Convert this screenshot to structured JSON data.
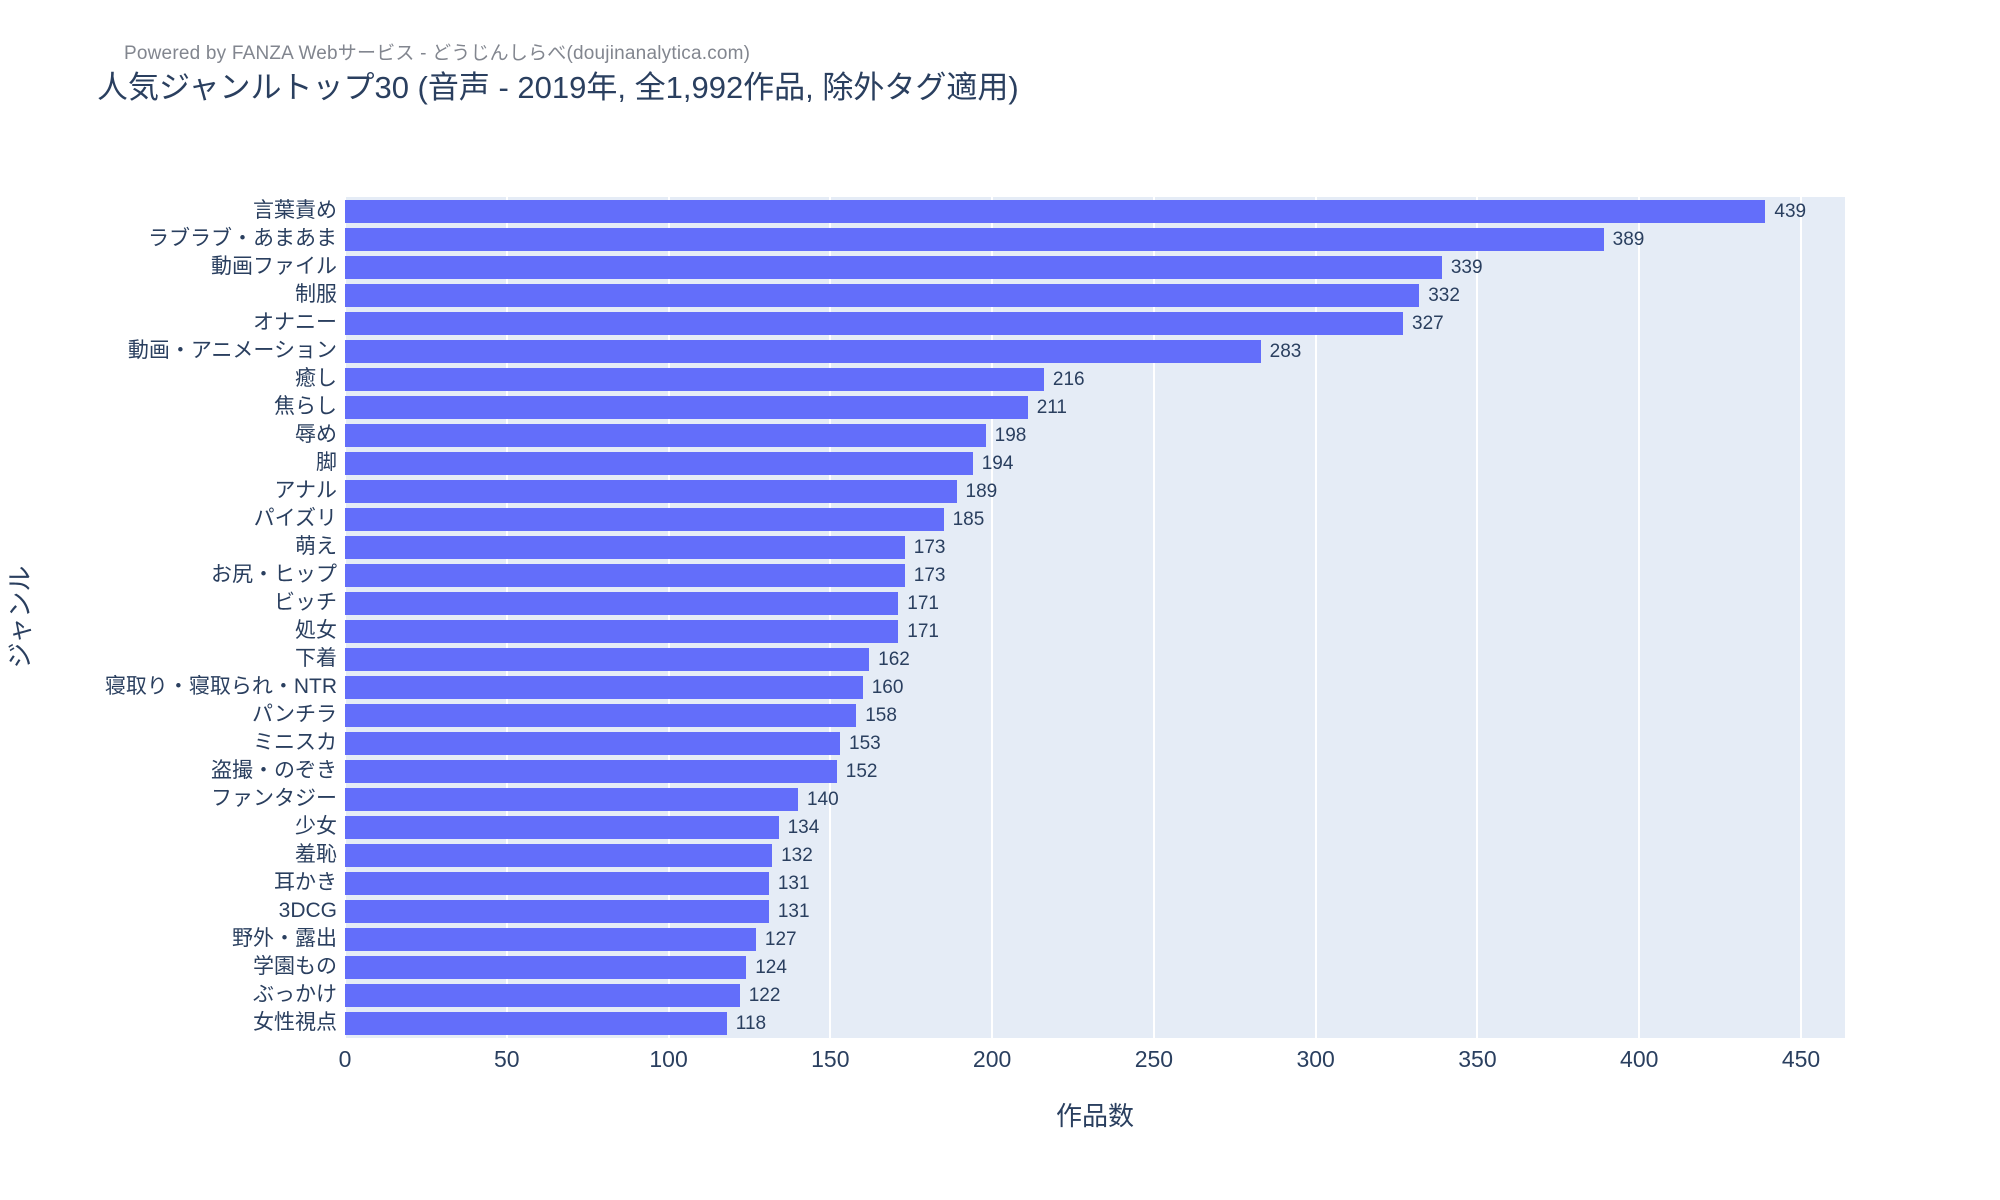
{
  "header": {
    "powered_by": "Powered by FANZA Webサービス - どうじんしらべ(doujinanalytica.com)",
    "title": "人気ジャンルトップ30 (音声 - 2019年, 全1,992作品, 除外タグ適用)"
  },
  "chart_data": {
    "type": "bar",
    "orientation": "horizontal",
    "title": "人気ジャンルトップ30 (音声 - 2019年, 全1,992作品, 除外タグ適用)",
    "xlabel": "作品数",
    "ylabel": "ジャンル",
    "categories": [
      "言葉責め",
      "ラブラブ・あまあま",
      "動画ファイル",
      "制服",
      "オナニー",
      "動画・アニメーション",
      "癒し",
      "焦らし",
      "辱め",
      "脚",
      "アナル",
      "パイズリ",
      "萌え",
      "お尻・ヒップ",
      "ビッチ",
      "処女",
      "下着",
      "寝取り・寝取られ・NTR",
      "パンチラ",
      "ミニスカ",
      "盗撮・のぞき",
      "ファンタジー",
      "少女",
      "羞恥",
      "耳かき",
      "3DCG",
      "野外・露出",
      "学園もの",
      "ぶっかけ",
      "女性視点"
    ],
    "values": [
      439,
      389,
      339,
      332,
      327,
      283,
      216,
      211,
      198,
      194,
      189,
      185,
      173,
      173,
      171,
      171,
      162,
      160,
      158,
      153,
      152,
      140,
      134,
      132,
      131,
      131,
      127,
      124,
      122,
      118
    ],
    "xticks": [
      0,
      50,
      100,
      150,
      200,
      250,
      300,
      350,
      400,
      450
    ],
    "xlim": [
      0,
      463
    ],
    "grid": true,
    "legend": "none",
    "colors": {
      "bar": "#636EFA",
      "plot_background": "#E5ECF6",
      "gridline": "#FFFFFF",
      "text": "#2a3f5f",
      "powered_by_text": "#82868f"
    }
  }
}
